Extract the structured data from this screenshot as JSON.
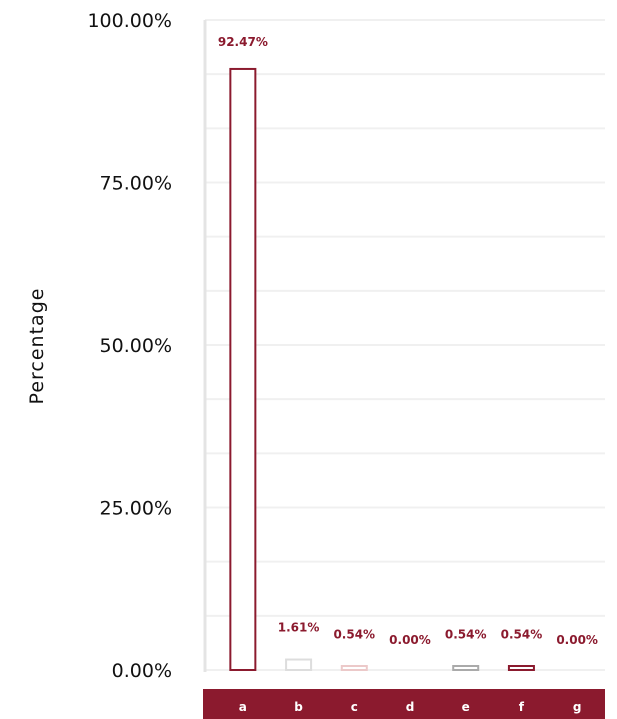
{
  "chart_data": {
    "type": "bar",
    "categories": [
      "a",
      "b",
      "c",
      "d",
      "e",
      "f",
      "g"
    ],
    "values": [
      92.47,
      1.61,
      0.54,
      0.0,
      0.54,
      0.54,
      0.0
    ],
    "data_labels": [
      "92.47%",
      "1.61%",
      "0.54%",
      "0.00%",
      "0.54%",
      "0.54%",
      "0.00%"
    ],
    "ylabel": "Percentage",
    "xlabel": "",
    "ylim": [
      0,
      100
    ],
    "yticks": [
      "0.00%",
      "25.00%",
      "50.00%",
      "75.00%",
      "100.00%"
    ],
    "grid": true,
    "bar_colors": [
      "#8b1a2e",
      "#dddddd",
      "#ecc9c9",
      "#dddddd",
      "#aaaaaa",
      "#8b1a2e",
      "#dddddd"
    ],
    "axis_band_color": "#8b1a2e",
    "label_color": "#8b1a2e"
  }
}
